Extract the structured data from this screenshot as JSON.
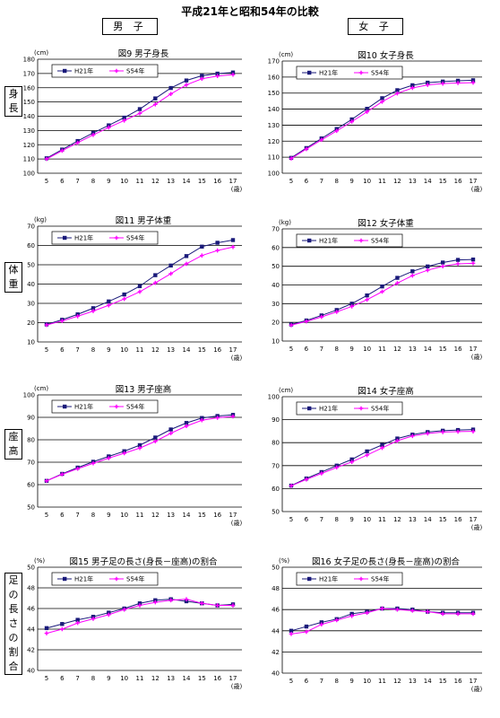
{
  "page_title": "平成21年と昭和54年の比較",
  "col_headers": {
    "boys": "男 子",
    "girls": "女 子"
  },
  "side_labels": [
    {
      "chars": [
        "身",
        "長"
      ]
    },
    {
      "chars": [
        "体",
        "重"
      ]
    },
    {
      "chars": [
        "座",
        "高"
      ]
    },
    {
      "chars": [
        "足",
        "の",
        "長",
        "さ",
        "の",
        "割",
        "合"
      ]
    }
  ],
  "age_unit": "(歳)",
  "colors": {
    "h21": "#1a1a7a",
    "s54": "#ff00ff"
  },
  "chart_data": [
    {
      "type": "line",
      "title": "図9 男子身長",
      "unit": "(cm)",
      "x": [
        5,
        6,
        7,
        8,
        9,
        10,
        11,
        12,
        13,
        14,
        15,
        16,
        17
      ],
      "ylim": [
        100,
        180
      ],
      "ystep": 10,
      "legend": "top-left",
      "series": [
        {
          "name": "H21年",
          "values": [
            110.5,
            116.6,
            122.6,
            128.3,
            133.6,
            139.0,
            145.0,
            152.5,
            159.8,
            165.1,
            168.4,
            169.9,
            170.7
          ]
        },
        {
          "name": "S54年",
          "values": [
            110.0,
            115.8,
            121.4,
            126.9,
            132.1,
            137.0,
            142.0,
            148.3,
            155.6,
            162.0,
            166.3,
            168.2,
            169.2
          ]
        }
      ]
    },
    {
      "type": "line",
      "title": "図10 女子身長",
      "unit": "(cm)",
      "x": [
        5,
        6,
        7,
        8,
        9,
        10,
        11,
        12,
        13,
        14,
        15,
        16,
        17
      ],
      "ylim": [
        100,
        170
      ],
      "ystep": 10,
      "legend": "top-left",
      "series": [
        {
          "name": "H21年",
          "values": [
            109.6,
            115.7,
            121.7,
            127.6,
            133.6,
            140.2,
            146.8,
            151.8,
            154.9,
            156.5,
            157.2,
            157.7,
            158.0
          ]
        },
        {
          "name": "S54年",
          "values": [
            109.2,
            115.1,
            120.8,
            126.4,
            132.2,
            138.3,
            144.6,
            149.8,
            153.2,
            155.1,
            155.9,
            156.3,
            156.5
          ]
        }
      ]
    },
    {
      "type": "line",
      "title": "図11 男子体重",
      "unit": "(kg)",
      "x": [
        5,
        6,
        7,
        8,
        9,
        10,
        11,
        12,
        13,
        14,
        15,
        16,
        17
      ],
      "ylim": [
        10,
        70
      ],
      "ystep": 10,
      "legend": "top-left",
      "series": [
        {
          "name": "H21年",
          "values": [
            19.1,
            21.5,
            24.3,
            27.5,
            31.0,
            34.6,
            38.9,
            44.6,
            49.6,
            54.5,
            59.4,
            61.4,
            62.8
          ]
        },
        {
          "name": "S54年",
          "values": [
            18.8,
            20.9,
            23.3,
            26.0,
            29.0,
            32.3,
            36.0,
            40.6,
            45.4,
            50.5,
            54.8,
            57.4,
            59.2
          ]
        }
      ]
    },
    {
      "type": "line",
      "title": "図12 女子体重",
      "unit": "(kg)",
      "x": [
        5,
        6,
        7,
        8,
        9,
        10,
        11,
        12,
        13,
        14,
        15,
        16,
        17
      ],
      "ylim": [
        10,
        70
      ],
      "ystep": 10,
      "legend": "top-left",
      "series": [
        {
          "name": "H21年",
          "values": [
            18.9,
            21.0,
            23.7,
            26.6,
            30.0,
            34.4,
            39.2,
            43.8,
            47.3,
            49.9,
            52.0,
            53.4,
            53.6
          ]
        },
        {
          "name": "S54年",
          "values": [
            18.5,
            20.5,
            22.9,
            25.6,
            28.5,
            32.1,
            36.4,
            41.0,
            45.0,
            47.9,
            50.0,
            51.3,
            51.6
          ]
        }
      ]
    },
    {
      "type": "line",
      "title": "図13 男子座高",
      "unit": "(cm)",
      "x": [
        5,
        6,
        7,
        8,
        9,
        10,
        11,
        12,
        13,
        14,
        15,
        16,
        17
      ],
      "ylim": [
        50,
        100
      ],
      "ystep": 10,
      "legend": "top-left",
      "series": [
        {
          "name": "H21年",
          "values": [
            61.7,
            64.8,
            67.6,
            70.2,
            72.6,
            74.9,
            77.6,
            81.0,
            84.6,
            87.5,
            89.7,
            90.6,
            91.1
          ]
        },
        {
          "name": "S54年",
          "values": [
            61.7,
            64.6,
            67.1,
            69.5,
            71.8,
            74.0,
            76.3,
            79.3,
            82.9,
            86.1,
            88.7,
            89.8,
            90.4
          ]
        }
      ]
    },
    {
      "type": "line",
      "title": "図14 女子座高",
      "unit": "(cm)",
      "x": [
        5,
        6,
        7,
        8,
        9,
        10,
        11,
        12,
        13,
        14,
        15,
        16,
        17
      ],
      "ylim": [
        50,
        100
      ],
      "ystep": 10,
      "legend": "top-left",
      "series": [
        {
          "name": "H21年",
          "values": [
            61.3,
            64.4,
            67.2,
            70.0,
            72.7,
            76.2,
            79.0,
            81.8,
            83.5,
            84.6,
            85.2,
            85.5,
            85.7
          ]
        },
        {
          "name": "S54年",
          "values": [
            61.2,
            64.0,
            66.6,
            69.2,
            71.6,
            74.6,
            77.7,
            80.8,
            82.9,
            84.0,
            84.6,
            84.8,
            84.9
          ]
        }
      ]
    },
    {
      "type": "line",
      "title": "図15 男子足の長さ(身長－座高)の割合",
      "unit": "(%)",
      "x": [
        5,
        6,
        7,
        8,
        9,
        10,
        11,
        12,
        13,
        14,
        15,
        16,
        17
      ],
      "ylim": [
        40,
        50
      ],
      "ystep": 2,
      "legend": "top-left",
      "series": [
        {
          "name": "H21年",
          "values": [
            44.1,
            44.5,
            44.9,
            45.2,
            45.6,
            46.0,
            46.5,
            46.8,
            46.9,
            46.7,
            46.5,
            46.3,
            46.4
          ]
        },
        {
          "name": "S54年",
          "values": [
            43.6,
            44.0,
            44.6,
            45.0,
            45.4,
            45.9,
            46.3,
            46.6,
            46.8,
            46.9,
            46.5,
            46.3,
            46.3
          ]
        }
      ]
    },
    {
      "type": "line",
      "title": "図16 女子足の長さ(身長－座高)の割合",
      "unit": "(%)",
      "x": [
        5,
        6,
        7,
        8,
        9,
        10,
        11,
        12,
        13,
        14,
        15,
        16,
        17
      ],
      "ylim": [
        40,
        50
      ],
      "ystep": 2,
      "legend": "top-left",
      "series": [
        {
          "name": "H21年",
          "values": [
            44.0,
            44.4,
            44.8,
            45.1,
            45.6,
            45.8,
            46.1,
            46.1,
            46.0,
            45.8,
            45.7,
            45.7,
            45.7
          ]
        },
        {
          "name": "S54年",
          "values": [
            43.7,
            43.9,
            44.6,
            45.0,
            45.4,
            45.7,
            46.1,
            46.0,
            45.9,
            45.8,
            45.6,
            45.6,
            45.6
          ]
        }
      ]
    }
  ]
}
